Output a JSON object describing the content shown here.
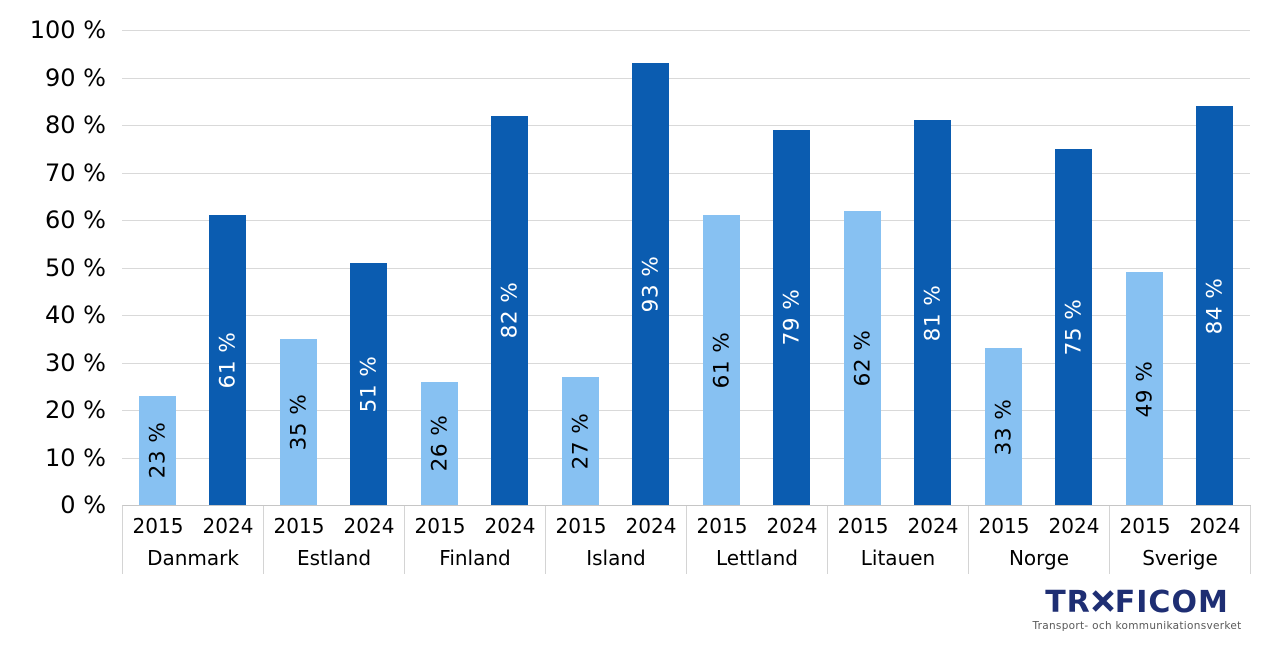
{
  "chart_data": {
    "type": "bar",
    "title": "",
    "categories": [
      "Danmark",
      "Estland",
      "Finland",
      "Island",
      "Lettland",
      "Litauen",
      "Norge",
      "Sverige"
    ],
    "series": [
      {
        "name": "2015",
        "color": "#87C1F2",
        "label_color": "#000000",
        "values": [
          23,
          35,
          26,
          27,
          61,
          62,
          33,
          49
        ]
      },
      {
        "name": "2024",
        "color": "#0B5CB0",
        "label_color": "#FFFFFF",
        "values": [
          61,
          51,
          82,
          93,
          79,
          81,
          75,
          84
        ]
      }
    ],
    "value_suffix": " %",
    "yticks": [
      0,
      10,
      20,
      30,
      40,
      50,
      60,
      70,
      80,
      90,
      100
    ],
    "ytick_suffix": " %",
    "ylim": [
      0,
      100
    ],
    "grid": true,
    "legend_position": "none",
    "bar_labels_rotated": "90deg-bottom-to-top",
    "gridline_color": "#D9D9D9"
  },
  "footer": {
    "logo_prefix": "TR",
    "logo_suffix": "FICOM",
    "logo_full": "TRAFICOM",
    "logo_color": "#1E2E73",
    "tagline": "Transport- och kommunikationsverket",
    "tagline_color": "#5A5A5A"
  }
}
